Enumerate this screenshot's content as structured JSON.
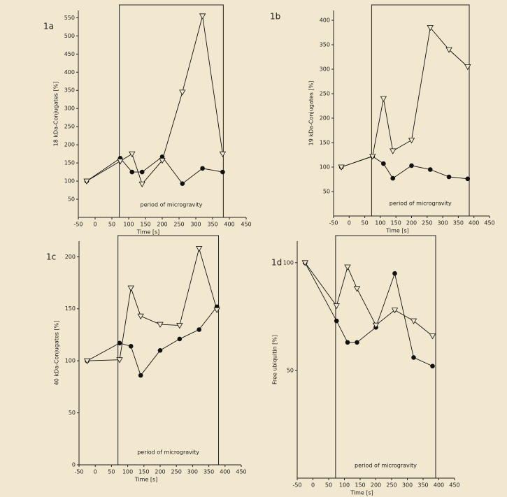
{
  "chart_data": [
    {
      "type": "line",
      "panel": "1a",
      "y_label": "18 kDa-Conjugates [%]",
      "x_label": "Time [s]",
      "xlim": [
        -50,
        450
      ],
      "xticks": [
        -50,
        0,
        50,
        100,
        150,
        200,
        250,
        300,
        350,
        400,
        450
      ],
      "ylim": [
        0,
        570
      ],
      "yticks": [
        50,
        100,
        150,
        200,
        250,
        300,
        350,
        400,
        450,
        500,
        550
      ],
      "period": {
        "label": "period of microgravity",
        "x": [
          72,
          382
        ]
      },
      "series": [
        {
          "marker": "circle",
          "color": "#111111",
          "x": [
            -25,
            75,
            110,
            140,
            200,
            260,
            320,
            380
          ],
          "values": [
            100,
            163,
            125,
            125,
            167,
            93,
            135,
            125
          ]
        },
        {
          "marker": "triangle",
          "color": "#111111",
          "x": [
            -25,
            75,
            110,
            140,
            200,
            260,
            320,
            380
          ],
          "values": [
            100,
            155,
            175,
            92,
            157,
            345,
            555,
            175
          ]
        }
      ]
    },
    {
      "type": "line",
      "panel": "1b",
      "y_label": "19 kDa-Conjugates [%]",
      "x_label": "Time [s]",
      "xlim": [
        -50,
        450
      ],
      "xticks": [
        -50,
        0,
        50,
        100,
        150,
        200,
        250,
        300,
        350,
        400,
        450
      ],
      "ylim": [
        0,
        420
      ],
      "yticks": [
        50,
        100,
        150,
        200,
        250,
        300,
        350,
        400
      ],
      "period": {
        "label": "period of microgravity",
        "x": [
          72,
          385
        ]
      },
      "series": [
        {
          "marker": "circle",
          "color": "#111111",
          "x": [
            -25,
            75,
            110,
            140,
            200,
            260,
            320,
            380
          ],
          "values": [
            100,
            122,
            107,
            77,
            103,
            95,
            80,
            76
          ]
        },
        {
          "marker": "triangle",
          "color": "#111111",
          "x": [
            -25,
            75,
            110,
            140,
            200,
            260,
            320,
            380
          ],
          "values": [
            100,
            122,
            240,
            133,
            155,
            385,
            340,
            305
          ]
        }
      ]
    },
    {
      "type": "line",
      "panel": "1c",
      "y_label": "40 kDa-Conjugates [%]",
      "x_label": "Time [s]",
      "xlim": [
        -50,
        450
      ],
      "xticks": [
        -50,
        0,
        50,
        100,
        150,
        200,
        250,
        300,
        350,
        400,
        450
      ],
      "ylim": [
        0,
        215
      ],
      "yticks": [
        0,
        50,
        100,
        150,
        200
      ],
      "period": {
        "label": "period of microgravity",
        "x": [
          70,
          380
        ]
      },
      "series": [
        {
          "marker": "circle",
          "color": "#111111",
          "x": [
            -25,
            75,
            110,
            140,
            200,
            260,
            320,
            375
          ],
          "values": [
            100,
            117,
            114,
            86,
            110,
            121,
            130,
            152
          ]
        },
        {
          "marker": "triangle",
          "color": "#111111",
          "x": [
            -25,
            75,
            110,
            140,
            200,
            260,
            320,
            375
          ],
          "values": [
            100,
            101,
            170,
            143,
            135,
            134,
            208,
            149
          ]
        }
      ]
    },
    {
      "type": "line",
      "panel": "1d",
      "y_label": "Free ubiquitin [%]",
      "x_label": "Time [s]",
      "xlim": [
        -50,
        450
      ],
      "xticks": [
        -50,
        0,
        50,
        100,
        150,
        200,
        250,
        300,
        350,
        400,
        450
      ],
      "ylim": [
        0,
        110
      ],
      "yticks": [
        50,
        100
      ],
      "period": {
        "label": "period of microgravity",
        "x": [
          72,
          390
        ]
      },
      "series": [
        {
          "marker": "circle",
          "color": "#111111",
          "x": [
            -25,
            75,
            110,
            140,
            200,
            260,
            320,
            380
          ],
          "values": [
            100,
            73,
            63,
            63,
            70,
            95,
            56,
            52
          ]
        },
        {
          "marker": "triangle",
          "color": "#111111",
          "x": [
            -25,
            75,
            110,
            140,
            200,
            260,
            320,
            380
          ],
          "values": [
            100,
            80,
            98,
            88,
            71,
            78,
            73,
            66
          ]
        }
      ]
    }
  ]
}
